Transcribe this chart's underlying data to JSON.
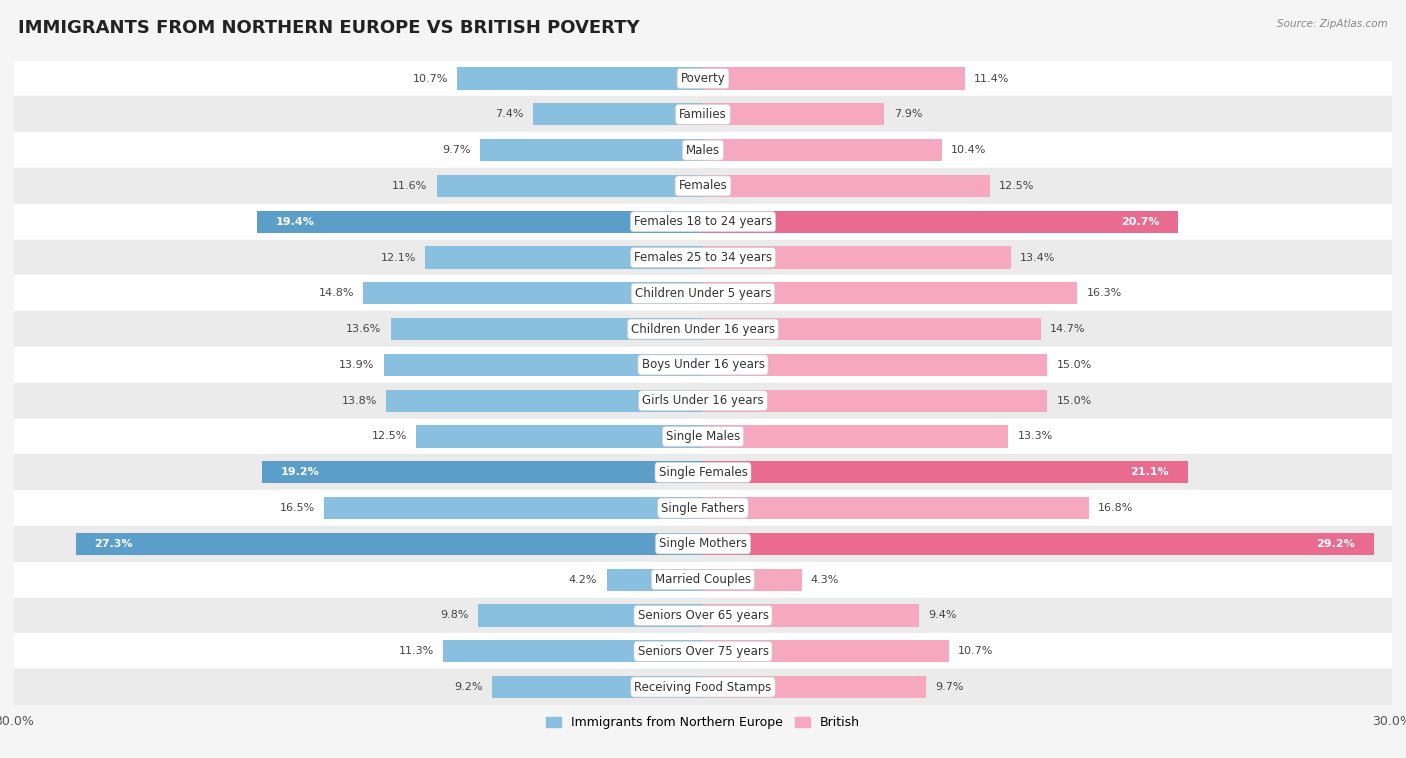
{
  "title": "IMMIGRANTS FROM NORTHERN EUROPE VS BRITISH POVERTY",
  "source": "Source: ZipAtlas.com",
  "categories": [
    "Poverty",
    "Families",
    "Males",
    "Females",
    "Females 18 to 24 years",
    "Females 25 to 34 years",
    "Children Under 5 years",
    "Children Under 16 years",
    "Boys Under 16 years",
    "Girls Under 16 years",
    "Single Males",
    "Single Females",
    "Single Fathers",
    "Single Mothers",
    "Married Couples",
    "Seniors Over 65 years",
    "Seniors Over 75 years",
    "Receiving Food Stamps"
  ],
  "left_values": [
    10.7,
    7.4,
    9.7,
    11.6,
    19.4,
    12.1,
    14.8,
    13.6,
    13.9,
    13.8,
    12.5,
    19.2,
    16.5,
    27.3,
    4.2,
    9.8,
    11.3,
    9.2
  ],
  "right_values": [
    11.4,
    7.9,
    10.4,
    12.5,
    20.7,
    13.4,
    16.3,
    14.7,
    15.0,
    15.0,
    13.3,
    21.1,
    16.8,
    29.2,
    4.3,
    9.4,
    10.7,
    9.7
  ],
  "left_color": "#89bfdf",
  "right_color": "#f5a8c0",
  "highlight_left_color": "#5b9ec9",
  "highlight_right_color": "#e96b90",
  "highlight_rows": [
    4,
    11,
    13
  ],
  "axis_max": 30.0,
  "legend_left": "Immigrants from Northern Europe",
  "legend_right": "British",
  "background_color": "#f5f5f5",
  "row_bg_white": "#ffffff",
  "row_bg_gray": "#ebebeb",
  "title_fontsize": 13,
  "label_fontsize": 8.5,
  "value_fontsize": 8.0
}
